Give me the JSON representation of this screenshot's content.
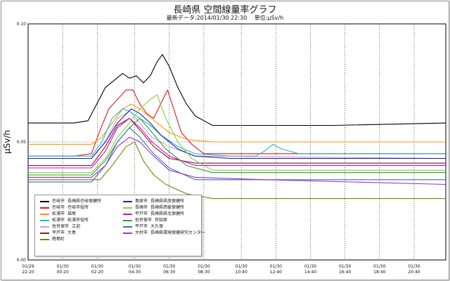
{
  "chart": {
    "title": "長崎県 空間線量率グラフ",
    "subtitle_date": "最新データ:2014/01/30 22:30",
    "subtitle_unit": "単位:μSv/h"
  },
  "chart_data": {
    "type": "line",
    "title": "長崎県 空間線量率グラフ",
    "ylabel": "μSv/h",
    "xlabel": "",
    "ylim": [
      0,
      0.1
    ],
    "y_ticks": [
      "0.00",
      "0.05",
      "0.10"
    ],
    "x_ticks": [
      {
        "line1": "01/29",
        "line2": "22:20"
      },
      {
        "line1": "01/30",
        "line2": "00:20"
      },
      {
        "line1": "01/30",
        "line2": "02:20"
      },
      {
        "line1": "01/30",
        "line2": "04:30"
      },
      {
        "line1": "01/30",
        "line2": "06:30"
      },
      {
        "line1": "01/30",
        "line2": "08:30"
      },
      {
        "line1": "01/30",
        "line2": "10:40"
      },
      {
        "line1": "01/30",
        "line2": "12:40"
      },
      {
        "line1": "01/30",
        "line2": "14:40"
      },
      {
        "line1": "01/30",
        "line2": "16:40"
      },
      {
        "line1": "01/30",
        "line2": "18:40"
      },
      {
        "line1": "01/30",
        "line2": "20:40"
      }
    ],
    "x_hours": [
      -1.667,
      0.333,
      2.333,
      4.5,
      6.5,
      8.5,
      10.667,
      12.667,
      14.667,
      16.667,
      18.667,
      20.667
    ],
    "x_range": [
      -1.667,
      22.5
    ],
    "grid": true,
    "legend_position": "bottom-left",
    "series": [
      {
        "city": "壱岐市",
        "site": "長崎県壱岐保健所",
        "color": "#000000",
        "points": [
          [
            -1.667,
            0.058
          ],
          [
            1,
            0.058
          ],
          [
            1.8,
            0.059
          ],
          [
            2.3,
            0.066
          ],
          [
            2.8,
            0.073
          ],
          [
            3.3,
            0.076
          ],
          [
            3.8,
            0.079
          ],
          [
            4.2,
            0.077
          ],
          [
            4.6,
            0.078
          ],
          [
            5.0,
            0.075
          ],
          [
            5.4,
            0.078
          ],
          [
            5.8,
            0.084
          ],
          [
            6.1,
            0.087
          ],
          [
            6.5,
            0.082
          ],
          [
            7.0,
            0.073
          ],
          [
            7.5,
            0.066
          ],
          [
            8.0,
            0.061
          ],
          [
            8.5,
            0.059
          ],
          [
            9,
            0.057
          ],
          [
            12,
            0.057
          ],
          [
            16,
            0.057
          ],
          [
            22.5,
            0.058
          ]
        ]
      },
      {
        "city": "壱岐市",
        "site": "壱岐市役所",
        "color": "#e6161c",
        "points": [
          [
            -1.667,
            0.044
          ],
          [
            1,
            0.044
          ],
          [
            2,
            0.045
          ],
          [
            2.5,
            0.055
          ],
          [
            3,
            0.064
          ],
          [
            3.5,
            0.068
          ],
          [
            4,
            0.072
          ],
          [
            4.4,
            0.072
          ],
          [
            4.8,
            0.066
          ],
          [
            5.2,
            0.062
          ],
          [
            5.6,
            0.06
          ],
          [
            6,
            0.066
          ],
          [
            6.4,
            0.072
          ],
          [
            6.8,
            0.063
          ],
          [
            7.2,
            0.054
          ],
          [
            7.8,
            0.049
          ],
          [
            8.5,
            0.045
          ],
          [
            10,
            0.045
          ],
          [
            22.5,
            0.045
          ]
        ]
      },
      {
        "city": "松浦市",
        "site": "福島",
        "color": "#ff9900",
        "points": [
          [
            -1.667,
            0.049
          ],
          [
            2,
            0.049
          ],
          [
            2.6,
            0.052
          ],
          [
            3.2,
            0.058
          ],
          [
            3.8,
            0.064
          ],
          [
            4.3,
            0.066
          ],
          [
            4.8,
            0.064
          ],
          [
            5.3,
            0.061
          ],
          [
            5.8,
            0.058
          ],
          [
            6.5,
            0.054
          ],
          [
            7.5,
            0.051
          ],
          [
            9,
            0.05
          ],
          [
            22.5,
            0.05
          ]
        ]
      },
      {
        "city": "松浦市",
        "site": "松浦市役所",
        "color": "#17becf",
        "points": [
          [
            -1.667,
            0.044
          ],
          [
            2,
            0.044
          ],
          [
            2.6,
            0.05
          ],
          [
            3.2,
            0.06
          ],
          [
            3.8,
            0.064
          ],
          [
            4.2,
            0.063
          ],
          [
            4.8,
            0.06
          ],
          [
            5.4,
            0.057
          ],
          [
            6,
            0.053
          ],
          [
            7,
            0.048
          ],
          [
            8,
            0.045
          ],
          [
            10,
            0.044
          ],
          [
            11.5,
            0.044
          ],
          [
            12,
            0.046
          ],
          [
            12.5,
            0.049
          ],
          [
            13,
            0.047
          ],
          [
            14,
            0.045
          ],
          [
            22.5,
            0.045
          ]
        ]
      },
      {
        "city": "佐世保市",
        "site": "江迎",
        "color": "#c7a2c8",
        "points": [
          [
            -1.667,
            0.043
          ],
          [
            2,
            0.043
          ],
          [
            2.8,
            0.05
          ],
          [
            3.5,
            0.06
          ],
          [
            4.2,
            0.063
          ],
          [
            4.8,
            0.058
          ],
          [
            5.5,
            0.052
          ],
          [
            6.5,
            0.048
          ],
          [
            8,
            0.044
          ],
          [
            22.5,
            0.043
          ]
        ]
      },
      {
        "city": "平戸市",
        "site": "大島",
        "color": "#8b1a1a",
        "points": [
          [
            -1.667,
            0.04
          ],
          [
            2,
            0.04
          ],
          [
            2.8,
            0.048
          ],
          [
            3.5,
            0.057
          ],
          [
            4.2,
            0.06
          ],
          [
            4.8,
            0.055
          ],
          [
            5.6,
            0.048
          ],
          [
            6.5,
            0.043
          ],
          [
            8,
            0.041
          ],
          [
            22.5,
            0.041
          ]
        ]
      },
      {
        "city": "雨島町",
        "site": "",
        "color": "#808000",
        "points": [
          [
            -1.667,
            0.034
          ],
          [
            2.5,
            0.034
          ],
          [
            3.2,
            0.04
          ],
          [
            4,
            0.048
          ],
          [
            4.5,
            0.05
          ],
          [
            5,
            0.042
          ],
          [
            5.6,
            0.036
          ],
          [
            6.3,
            0.032
          ],
          [
            7.5,
            0.028
          ],
          [
            9,
            0.026
          ],
          [
            12,
            0.026
          ],
          [
            22.5,
            0.026
          ]
        ]
      },
      {
        "city": "島原市",
        "site": "長崎県県南保健所",
        "color": "#1f1fb4",
        "points": [
          [
            -1.667,
            0.043
          ],
          [
            2,
            0.043
          ],
          [
            2.8,
            0.05
          ],
          [
            3.5,
            0.058
          ],
          [
            4.3,
            0.064
          ],
          [
            4.8,
            0.062
          ],
          [
            5.4,
            0.058
          ],
          [
            6,
            0.053
          ],
          [
            7,
            0.047
          ],
          [
            8,
            0.044
          ],
          [
            10,
            0.043
          ],
          [
            22.5,
            0.043
          ]
        ]
      },
      {
        "city": "長崎市",
        "site": "長崎県西彼保健所",
        "color": "#7fd43a",
        "points": [
          [
            -1.667,
            0.037
          ],
          [
            2,
            0.037
          ],
          [
            2.8,
            0.043
          ],
          [
            3.5,
            0.052
          ],
          [
            4.2,
            0.058
          ],
          [
            4.8,
            0.064
          ],
          [
            5.4,
            0.068
          ],
          [
            5.8,
            0.07
          ],
          [
            6.3,
            0.06
          ],
          [
            7,
            0.05
          ],
          [
            7.8,
            0.043
          ],
          [
            9,
            0.038
          ],
          [
            22.5,
            0.038
          ]
        ]
      },
      {
        "city": "平戸市",
        "site": "長崎県県北保健所",
        "color": "#e000e0",
        "points": [
          [
            -1.667,
            0.039
          ],
          [
            2,
            0.039
          ],
          [
            2.8,
            0.046
          ],
          [
            3.5,
            0.056
          ],
          [
            4.2,
            0.06
          ],
          [
            4.8,
            0.056
          ],
          [
            5.5,
            0.05
          ],
          [
            6.5,
            0.044
          ],
          [
            8,
            0.04
          ],
          [
            22.5,
            0.04
          ]
        ]
      },
      {
        "city": "佐世保市",
        "site": "世知原",
        "color": "#2ca02c",
        "points": [
          [
            -1.667,
            0.036
          ],
          [
            2,
            0.036
          ],
          [
            2.8,
            0.042
          ],
          [
            3.5,
            0.05
          ],
          [
            4.2,
            0.056
          ],
          [
            4.8,
            0.06
          ],
          [
            5.5,
            0.054
          ],
          [
            6.3,
            0.047
          ],
          [
            7.5,
            0.04
          ],
          [
            9,
            0.037
          ],
          [
            22.5,
            0.037
          ]
        ]
      },
      {
        "city": "平戸市",
        "site": "大久保",
        "color": "#3a6fb0",
        "points": [
          [
            -1.667,
            0.033
          ],
          [
            2,
            0.033
          ],
          [
            2.8,
            0.04
          ],
          [
            3.5,
            0.05
          ],
          [
            4.2,
            0.056
          ],
          [
            4.8,
            0.052
          ],
          [
            5.6,
            0.045
          ],
          [
            6.5,
            0.039
          ],
          [
            8,
            0.034
          ],
          [
            22.5,
            0.034
          ]
        ]
      },
      {
        "city": "大村市",
        "site": "長崎県環境保健研究センター",
        "color": "#9b30d0",
        "points": [
          [
            -1.667,
            0.035
          ],
          [
            2,
            0.035
          ],
          [
            2.8,
            0.04
          ],
          [
            3.5,
            0.048
          ],
          [
            4.2,
            0.052
          ],
          [
            4.8,
            0.05
          ],
          [
            5.6,
            0.044
          ],
          [
            6.5,
            0.038
          ],
          [
            8,
            0.035
          ],
          [
            12,
            0.034
          ],
          [
            22.5,
            0.032
          ]
        ]
      }
    ]
  }
}
